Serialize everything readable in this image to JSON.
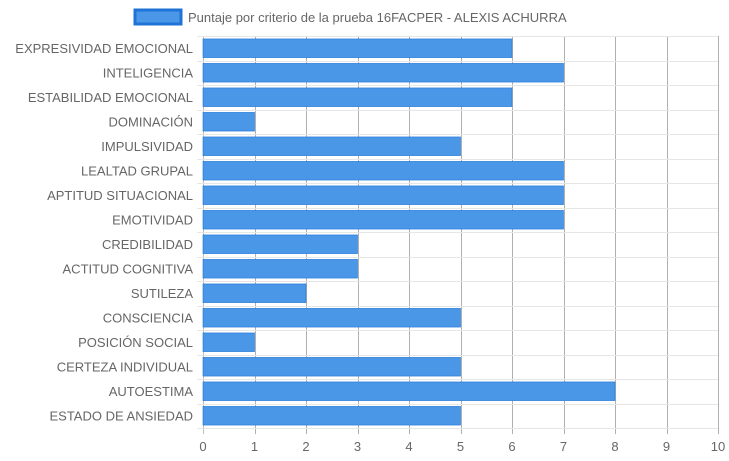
{
  "chart_data": {
    "type": "bar",
    "orientation": "horizontal",
    "legend": {
      "label": "Puntaje por criterio de la prueba 16FACPER - ALEXIS ACHURRA",
      "placement": "top-center",
      "color": "#4a97e8",
      "border_color": "#1f73d6"
    },
    "categories": [
      "EXPRESIVIDAD EMOCIONAL",
      "INTELIGENCIA",
      "ESTABILIDAD EMOCIONAL",
      "DOMINACIÓN",
      "IMPULSIVIDAD",
      "LEALTAD GRUPAL",
      "APTITUD SITUACIONAL",
      "EMOTIVIDAD",
      "CREDIBILIDAD",
      "ACTITUD COGNITIVA",
      "SUTILEZA",
      "CONSCIENCIA",
      "POSICIÓN SOCIAL",
      "CERTEZA INDIVIDUAL",
      "AUTOESTIMA",
      "ESTADO DE ANSIEDAD"
    ],
    "series": [
      {
        "name": "Puntaje por criterio de la prueba 16FACPER - ALEXIS ACHURRA",
        "values": [
          6,
          7,
          6,
          1,
          5,
          7,
          7,
          7,
          3,
          3,
          2,
          5,
          1,
          5,
          8,
          5
        ]
      }
    ],
    "xlim": [
      0,
      10
    ],
    "x_ticks": [
      "0",
      "1",
      "2",
      "3",
      "4",
      "5",
      "6",
      "7",
      "8",
      "9",
      "10"
    ],
    "grid": true
  }
}
